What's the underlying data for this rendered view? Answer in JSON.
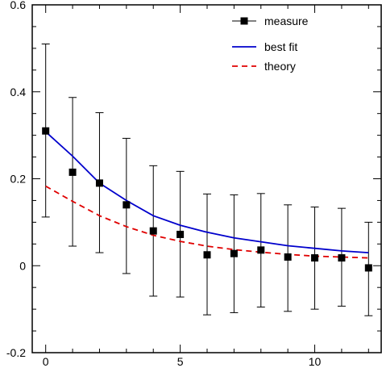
{
  "chart_data": {
    "type": "scatter",
    "title": "",
    "xlabel": "",
    "ylabel": "",
    "xlim": [
      -0.5,
      12.5
    ],
    "ylim": [
      -0.2,
      0.6
    ],
    "x_ticks": [
      0,
      5,
      10
    ],
    "x_tick_labels": [
      "0",
      "5",
      "10"
    ],
    "y_ticks": [
      -0.2,
      0,
      0.2,
      0.4,
      0.6
    ],
    "y_tick_labels": [
      "-0.2",
      "0",
      "0.2",
      "0.4",
      "0.6"
    ],
    "grid": false,
    "legend_position": "top-right",
    "series": [
      {
        "name": "measure",
        "kind": "points-with-error-bars",
        "color": "#000000",
        "x": [
          0,
          1,
          2,
          3,
          4,
          5,
          6,
          7,
          8,
          9,
          10,
          11,
          12
        ],
        "y": [
          0.31,
          0.215,
          0.19,
          0.14,
          0.08,
          0.072,
          0.025,
          0.028,
          0.036,
          0.02,
          0.018,
          0.018,
          -0.005
        ],
        "yerr_low": [
          0.112,
          0.045,
          0.03,
          -0.018,
          -0.07,
          -0.072,
          -0.113,
          -0.108,
          -0.095,
          -0.105,
          -0.1,
          -0.093,
          -0.115
        ],
        "yerr_high": [
          0.51,
          0.387,
          0.352,
          0.293,
          0.23,
          0.217,
          0.165,
          0.163,
          0.166,
          0.14,
          0.135,
          0.132,
          0.1
        ]
      },
      {
        "name": "best fit",
        "kind": "line",
        "color": "#0000cc",
        "dash": "solid",
        "x": [
          0,
          1,
          2,
          3,
          4,
          5,
          6,
          7,
          8,
          9,
          10,
          11,
          12
        ],
        "y": [
          0.308,
          0.252,
          0.19,
          0.15,
          0.115,
          0.093,
          0.077,
          0.064,
          0.055,
          0.046,
          0.04,
          0.034,
          0.03
        ]
      },
      {
        "name": "theory",
        "kind": "line",
        "color": "#e00000",
        "dash": "dashed",
        "x": [
          0,
          1,
          2,
          3,
          4,
          5,
          6,
          7,
          8,
          9,
          10,
          11,
          12
        ],
        "y": [
          0.183,
          0.148,
          0.115,
          0.09,
          0.07,
          0.056,
          0.045,
          0.037,
          0.031,
          0.026,
          0.022,
          0.02,
          0.018
        ]
      }
    ]
  }
}
